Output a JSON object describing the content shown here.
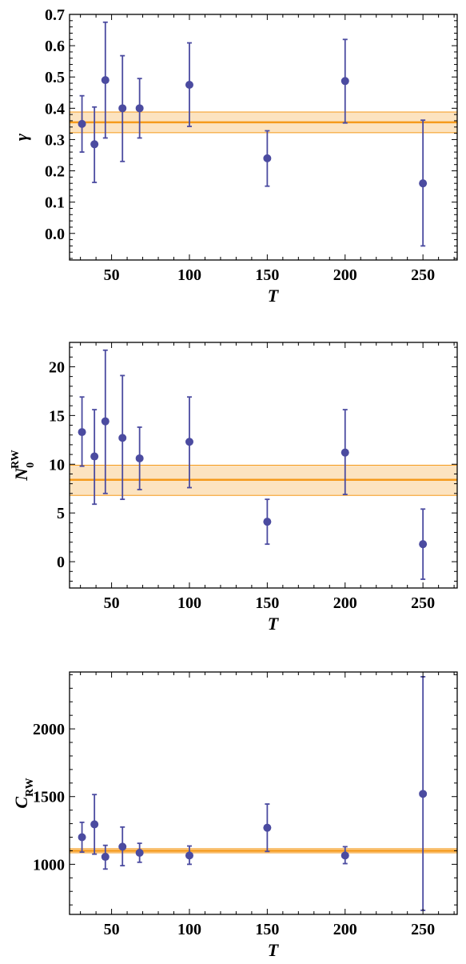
{
  "colors": {
    "points": "#4b4ba0",
    "fit": "#f59a1b",
    "band": "#fce3c0",
    "frame": "#000000"
  },
  "chart_data": [
    {
      "type": "scatter",
      "xlabel": "T",
      "ylabel": "γ",
      "xlim": [
        23,
        272
      ],
      "ylim": [
        -0.085,
        0.7
      ],
      "xticks": [
        50,
        100,
        150,
        200,
        250
      ],
      "xtick_labels": [
        "50",
        "100",
        "150",
        "200",
        "250"
      ],
      "yticks": [
        0.0,
        0.1,
        0.2,
        0.3,
        0.4,
        0.5,
        0.6,
        0.7
      ],
      "ytick_labels": [
        "0.0",
        "0.1",
        "0.2",
        "0.3",
        "0.4",
        "0.5",
        "0.6",
        "0.7"
      ],
      "fit": {
        "value": 0.355,
        "lower": 0.322,
        "upper": 0.388
      },
      "points": [
        {
          "x": 31,
          "y": 0.35,
          "lo": 0.26,
          "hi": 0.44
        },
        {
          "x": 39,
          "y": 0.285,
          "lo": 0.163,
          "hi": 0.404
        },
        {
          "x": 46,
          "y": 0.49,
          "lo": 0.305,
          "hi": 0.675
        },
        {
          "x": 57,
          "y": 0.4,
          "lo": 0.23,
          "hi": 0.568
        },
        {
          "x": 68,
          "y": 0.4,
          "lo": 0.305,
          "hi": 0.495
        },
        {
          "x": 100,
          "y": 0.475,
          "lo": 0.342,
          "hi": 0.609
        },
        {
          "x": 150,
          "y": 0.24,
          "lo": 0.151,
          "hi": 0.328
        },
        {
          "x": 200,
          "y": 0.487,
          "lo": 0.353,
          "hi": 0.62
        },
        {
          "x": 250,
          "y": 0.16,
          "lo": -0.04,
          "hi": 0.362
        }
      ]
    },
    {
      "type": "scatter",
      "xlabel": "T",
      "ylabel_main": "N",
      "ylabel_sub": "0",
      "ylabel_sup": "RW",
      "xlim": [
        23,
        272
      ],
      "ylim": [
        -2.7,
        22.5
      ],
      "xticks": [
        50,
        100,
        150,
        200,
        250
      ],
      "xtick_labels": [
        "50",
        "100",
        "150",
        "200",
        "250"
      ],
      "yticks": [
        0,
        5,
        10,
        15,
        20
      ],
      "ytick_labels": [
        "0",
        "5",
        "10",
        "15",
        "20"
      ],
      "fit": {
        "value": 8.4,
        "lower": 6.8,
        "upper": 9.9
      },
      "points": [
        {
          "x": 31,
          "y": 13.3,
          "lo": 9.8,
          "hi": 16.9
        },
        {
          "x": 39,
          "y": 10.8,
          "lo": 5.9,
          "hi": 15.6
        },
        {
          "x": 46,
          "y": 14.4,
          "lo": 7.0,
          "hi": 21.7
        },
        {
          "x": 57,
          "y": 12.7,
          "lo": 6.4,
          "hi": 19.1
        },
        {
          "x": 68,
          "y": 10.6,
          "lo": 7.4,
          "hi": 13.8
        },
        {
          "x": 100,
          "y": 12.3,
          "lo": 7.6,
          "hi": 16.9
        },
        {
          "x": 150,
          "y": 4.1,
          "lo": 1.8,
          "hi": 6.4
        },
        {
          "x": 200,
          "y": 11.2,
          "lo": 6.9,
          "hi": 15.6
        },
        {
          "x": 250,
          "y": 1.8,
          "lo": -1.8,
          "hi": 5.4
        }
      ]
    },
    {
      "type": "scatter",
      "xlabel": "T",
      "ylabel_main": "C",
      "ylabel_sub": "RW",
      "xlim": [
        23,
        272
      ],
      "ylim": [
        630,
        2420
      ],
      "xticks": [
        50,
        100,
        150,
        200,
        250
      ],
      "xtick_labels": [
        "50",
        "100",
        "150",
        "200",
        "250"
      ],
      "yticks": [
        1000,
        1500,
        2000
      ],
      "ytick_labels": [
        "1000",
        "1500",
        "2000"
      ],
      "fit": {
        "value": 1100,
        "lower": 1085,
        "upper": 1115
      },
      "points": [
        {
          "x": 31,
          "y": 1200,
          "lo": 1090,
          "hi": 1310
        },
        {
          "x": 39,
          "y": 1295,
          "lo": 1075,
          "hi": 1515
        },
        {
          "x": 46,
          "y": 1055,
          "lo": 965,
          "hi": 1140
        },
        {
          "x": 57,
          "y": 1130,
          "lo": 990,
          "hi": 1275
        },
        {
          "x": 68,
          "y": 1085,
          "lo": 1015,
          "hi": 1155
        },
        {
          "x": 100,
          "y": 1065,
          "lo": 1000,
          "hi": 1135
        },
        {
          "x": 150,
          "y": 1270,
          "lo": 1095,
          "hi": 1445
        },
        {
          "x": 200,
          "y": 1065,
          "lo": 1005,
          "hi": 1130
        },
        {
          "x": 250,
          "y": 1520,
          "lo": 660,
          "hi": 2385
        }
      ]
    }
  ]
}
